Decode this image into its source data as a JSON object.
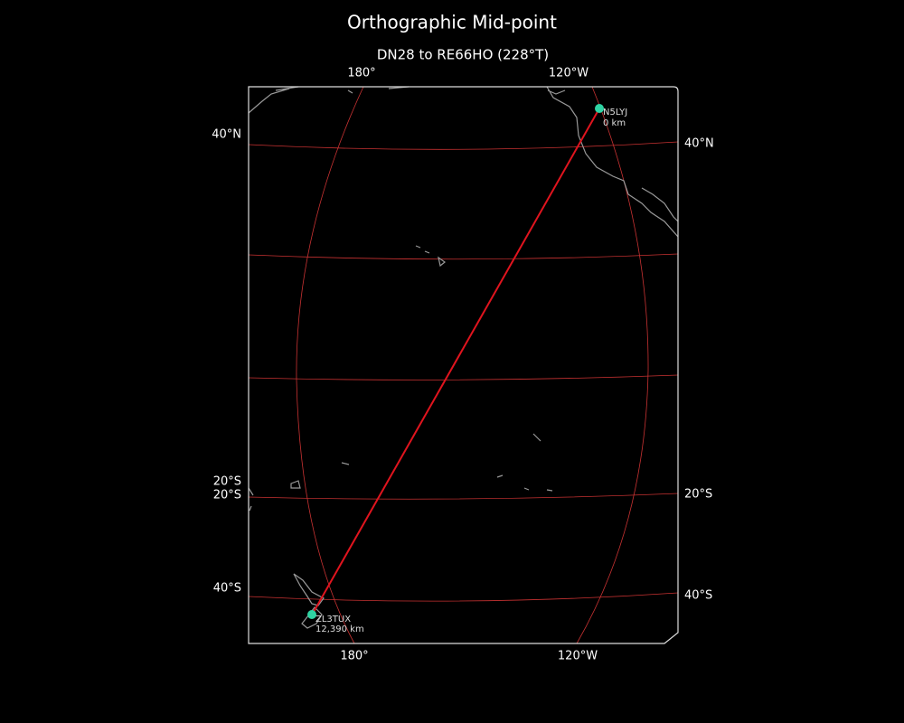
{
  "title": "Orthographic Mid-point",
  "subtitle": "DN28 to RE66HO (228°T)",
  "graticule_labels": {
    "top": [
      "180°",
      "120°W"
    ],
    "bottom": [
      "180°",
      "120°W"
    ],
    "left": [
      "40°N",
      "20°S",
      "20°S",
      "40°S"
    ],
    "right": [
      "40°N",
      "20°S",
      "40°S"
    ]
  },
  "stations": [
    {
      "call": "N5LYJ",
      "distance": "0 km"
    },
    {
      "call": "ZL3TUX",
      "distance": "12,390 km"
    }
  ]
}
